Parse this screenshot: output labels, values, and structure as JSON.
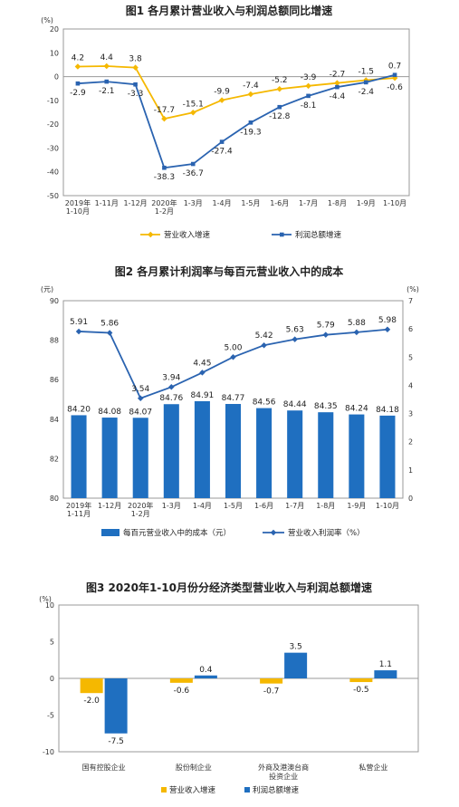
{
  "chart_data": [
    {
      "type": "line",
      "title": "图1  各月累计营业收入与利润总额同比增速",
      "yunit": "(%)",
      "ylim": [
        -50,
        20
      ],
      "yticks": [
        20,
        10,
        0,
        -10,
        -20,
        -30,
        -40,
        -50
      ],
      "categories": [
        "2019年\n1-10月",
        "1-11月",
        "1-12月",
        "2020年\n1-2月",
        "1-3月",
        "1-4月",
        "1-5月",
        "1-6月",
        "1-7月",
        "1-8月",
        "1-9月",
        "1-10月"
      ],
      "series": [
        {
          "name": "营业收入增速",
          "color": "#f5b800",
          "values": [
            4.2,
            4.4,
            3.8,
            -17.7,
            -15.1,
            -9.9,
            -7.4,
            -5.2,
            -3.9,
            -2.7,
            -1.5,
            -0.6
          ]
        },
        {
          "name": "利润总额增速",
          "color": "#2a63b0",
          "values": [
            -2.9,
            -2.1,
            -3.3,
            -38.3,
            -36.7,
            -27.4,
            -19.3,
            -12.8,
            -8.1,
            -4.4,
            -2.4,
            0.7
          ]
        }
      ]
    },
    {
      "type": "bar+line",
      "title": "图2  各月累计利润率与每百元营业收入中的成本",
      "left_unit": "(元)",
      "right_unit": "(%)",
      "ylim_left": [
        80,
        90
      ],
      "yticks_left": [
        90,
        88,
        86,
        84,
        82,
        80
      ],
      "ylim_right": [
        0,
        7
      ],
      "yticks_right": [
        7,
        6,
        5,
        4,
        3,
        2,
        1,
        0
      ],
      "categories": [
        "2019年\n1-11月",
        "1-12月",
        "2020年\n1-2月",
        "1-3月",
        "1-4月",
        "1-5月",
        "1-6月",
        "1-7月",
        "1-8月",
        "1-9月",
        "1-10月"
      ],
      "bars": {
        "name": "每百元营业收入中的成本（元）",
        "color": "#1f6fc0",
        "values": [
          84.2,
          84.08,
          84.07,
          84.76,
          84.91,
          84.77,
          84.56,
          84.44,
          84.35,
          84.24,
          84.18
        ],
        "labels": [
          "84.20",
          "84.08",
          "84.07",
          "84.76",
          "84.91",
          "84.77",
          "84.56",
          "84.44",
          "84.35",
          "84.24",
          "84.18"
        ]
      },
      "line": {
        "name": "营业收入利润率（%）",
        "color": "#2a63b0",
        "values": [
          5.91,
          5.86,
          3.54,
          3.94,
          4.45,
          5.0,
          5.42,
          5.63,
          5.79,
          5.88,
          5.98
        ],
        "labels": [
          "5.91",
          "5.86",
          "3.54",
          "3.94",
          "4.45",
          "5.00",
          "5.42",
          "5.63",
          "5.79",
          "5.88",
          "5.98"
        ]
      }
    },
    {
      "type": "bar",
      "title": "图3  2020年1-10月份分经济类型营业收入与利润总额增速",
      "yunit": "(%)",
      "ylim": [
        -10,
        10
      ],
      "yticks": [
        10,
        5,
        0,
        -5,
        -10
      ],
      "categories": [
        "国有控股企业",
        "股份制企业",
        "外商及港澳台商\n投资企业",
        "私营企业"
      ],
      "series": [
        {
          "name": "营业收入增速",
          "color": "#f5b800",
          "values": [
            -2.0,
            -0.6,
            -0.7,
            -0.5
          ],
          "labels": [
            "-2.0",
            "-0.6",
            "-0.7",
            "-0.5"
          ]
        },
        {
          "name": "利润总额增速",
          "color": "#1f6fc0",
          "values": [
            -7.5,
            0.4,
            3.5,
            1.1
          ],
          "labels": [
            "-7.5",
            "0.4",
            "3.5",
            "1.1"
          ]
        }
      ]
    }
  ]
}
